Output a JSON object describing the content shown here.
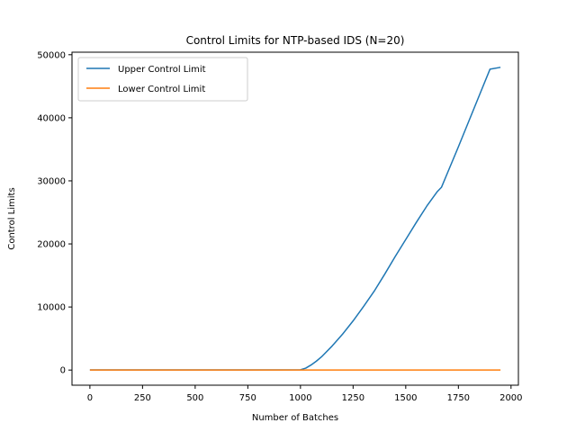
{
  "chart_data": {
    "type": "line",
    "title": "Control Limits for NTP-based IDS (N=20)",
    "xlabel": "Number of Batches",
    "ylabel": "Control Limits",
    "xlim": [
      -85,
      2035
    ],
    "ylim": [
      -2400,
      50400
    ],
    "xticks": [
      0,
      250,
      500,
      750,
      1000,
      1250,
      1500,
      1750,
      2000
    ],
    "yticks": [
      0,
      10000,
      20000,
      30000,
      40000,
      50000
    ],
    "grid": false,
    "legend_position": "top-left",
    "series": [
      {
        "name": "Upper Control Limit",
        "color": "#1f77b4",
        "x": [
          0,
          250,
          500,
          750,
          1000,
          1025,
          1050,
          1075,
          1100,
          1150,
          1200,
          1250,
          1300,
          1350,
          1400,
          1450,
          1500,
          1550,
          1600,
          1650,
          1670,
          1700,
          1750,
          1800,
          1850,
          1900,
          1950
        ],
        "y": [
          20,
          20,
          20,
          20,
          50,
          300,
          800,
          1400,
          2100,
          3800,
          5700,
          7800,
          10100,
          12500,
          15200,
          18000,
          20700,
          23400,
          26000,
          28300,
          29000,
          31400,
          35400,
          39500,
          43600,
          47700,
          48000
        ]
      },
      {
        "name": "Lower Control Limit",
        "color": "#ff7f0e",
        "x": [
          0,
          250,
          500,
          750,
          1000,
          1250,
          1500,
          1750,
          1950
        ],
        "y": [
          0,
          0,
          0,
          0,
          0,
          0,
          0,
          0,
          0
        ]
      }
    ]
  }
}
